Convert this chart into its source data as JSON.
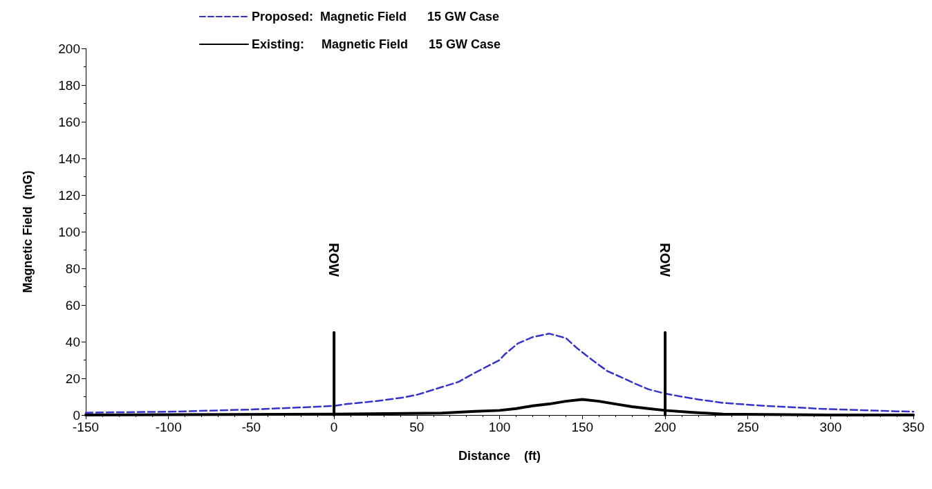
{
  "chart_data": {
    "type": "line",
    "xlabel": "Distance    (ft)",
    "ylabel": "Magnetic Field  (mG)",
    "xlim": [
      -150,
      350
    ],
    "xticks": [
      -150,
      -100,
      -50,
      0,
      50,
      100,
      150,
      200,
      250,
      300,
      350
    ],
    "ylim": [
      0,
      200
    ],
    "yticks": [
      0,
      20,
      40,
      60,
      80,
      100,
      120,
      140,
      160,
      180,
      200
    ],
    "grid": false,
    "legend": "top",
    "marker": "none",
    "series": [
      {
        "name": "Proposed:  Magnetic Field      15 GW Case",
        "color": "#3333cc",
        "line_style": "dashed",
        "x": [
          -150,
          -140,
          -100,
          -90,
          -50,
          -29,
          -10,
          0,
          8,
          25,
          42,
          50,
          75,
          85,
          100,
          103,
          111,
          120,
          130,
          140,
          147,
          156,
          165,
          175,
          182,
          190,
          200,
          210,
          220,
          235,
          260,
          296,
          340,
          350
        ],
        "values": [
          1.2,
          1.4,
          1.8,
          2,
          3,
          3.8,
          4.5,
          5,
          6,
          7.5,
          9.6,
          11,
          18,
          23,
          30,
          33,
          39,
          42.5,
          44.4,
          42,
          36.3,
          30,
          24,
          20,
          17,
          14,
          11.7,
          10,
          8.5,
          6.6,
          5,
          3.3,
          2,
          1.8
        ]
      },
      {
        "name": "Existing:     Magnetic Field      15 GW Case",
        "color": "#000000",
        "line_style": "solid",
        "x": [
          -150,
          0,
          65,
          85,
          100,
          110,
          120,
          130,
          140,
          150,
          160,
          170,
          180,
          190,
          200,
          215,
          235,
          300,
          350
        ],
        "values": [
          0,
          0.5,
          1,
          2,
          2.5,
          3.5,
          5,
          6,
          7.5,
          8.5,
          7.5,
          6,
          4.5,
          3.5,
          2.5,
          1.5,
          0.5,
          0,
          0
        ]
      },
      {
        "color": "#000000",
        "line_style": "solid",
        "x": [
          0,
          0
        ],
        "values": [
          0,
          45
        ]
      },
      {
        "color": "#000000",
        "line_style": "solid",
        "x": [
          200,
          200
        ],
        "values": [
          0,
          45
        ]
      }
    ],
    "annotations": [
      "ROW",
      "ROW"
    ]
  }
}
